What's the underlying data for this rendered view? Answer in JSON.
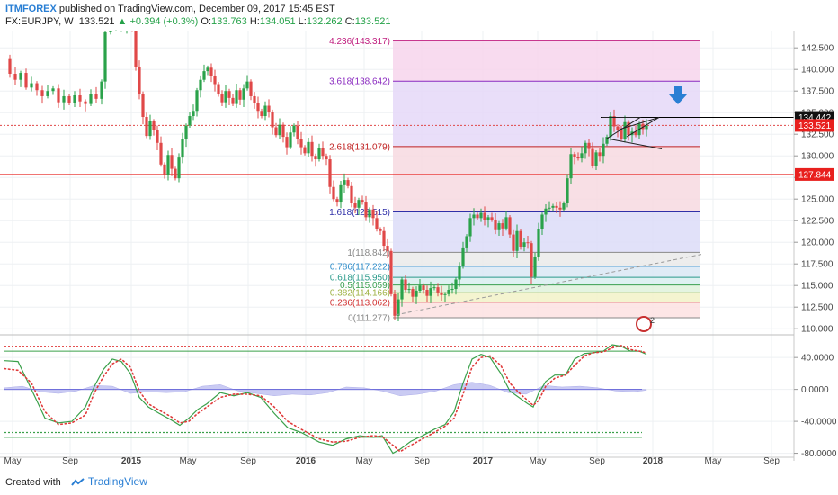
{
  "header": {
    "brand": "ITMFOREX",
    "published": " published on TradingView.com, December 09, 2017 15:45 EST",
    "symbol": "FX:EURJPY, W",
    "last": "133.521",
    "change": "▲ +0.394 (+0.3%)",
    "o_label": "O:",
    "o_value": "133.763",
    "h_label": "H:",
    "h_value": "134.051",
    "l_label": "L:",
    "l_value": "132.262",
    "c_label": "C:",
    "c_value": "133.521"
  },
  "footer": {
    "created_with": "Created with",
    "brand": "TradingView"
  },
  "colors": {
    "bull": "#2aa24a",
    "bear": "#e04848",
    "resistance": "#e8201e",
    "arrow": "#2a7fd4",
    "osc_main": "#3aa04a",
    "osc_signal": "#e03a3a",
    "osc_fill": "#b5b6ee"
  },
  "chart_data": {
    "type": "candlestick",
    "symbol": "FX:EURJPY",
    "timeframe": "W",
    "ylim": [
      109.5,
      144.5
    ],
    "y_ticks": [
      110.0,
      112.5,
      115.0,
      117.5,
      120.0,
      122.5,
      125.0,
      127.5,
      130.0,
      132.5,
      135.0,
      137.5,
      140.0,
      142.5
    ],
    "x_ticks": [
      "May",
      "Sep",
      "2015",
      "May",
      "Sep",
      "2016",
      "May",
      "Sep",
      "2017",
      "May",
      "Sep",
      "2018",
      "May",
      "Sep"
    ],
    "price_labels": [
      {
        "value": 134.442,
        "text": "134.442",
        "style": "black"
      },
      {
        "value": 133.521,
        "text": "133.521",
        "style": "red"
      },
      {
        "value": 127.844,
        "text": "127.844",
        "style": "red"
      }
    ],
    "horizontal_lines": [
      {
        "value": 133.521,
        "style": "dotted",
        "color": "#e04848"
      },
      {
        "value": 127.844,
        "style": "solid",
        "color": "#e8201e"
      },
      {
        "value": 134.442,
        "style": "solid",
        "color": "#000000"
      }
    ],
    "fibonacci": {
      "low": 111.277,
      "high": 118.842,
      "levels": [
        {
          "ratio": "0",
          "value": 111.277,
          "label": "0(111.277)",
          "color": "#888888"
        },
        {
          "ratio": "0.236",
          "value": 113.062,
          "label": "0.236(113.062)",
          "color": "#d03030"
        },
        {
          "ratio": "0.382",
          "value": 114.166,
          "label": "0.382(114.166)",
          "color": "#9cb040"
        },
        {
          "ratio": "0.5",
          "value": 115.059,
          "label": "0.5(115.059)",
          "color": "#3aa050"
        },
        {
          "ratio": "0.618",
          "value": 115.95,
          "label": "0.618(115.950)",
          "color": "#2a9a8a"
        },
        {
          "ratio": "0.786",
          "value": 117.22,
          "label": "0.786(117.222)",
          "color": "#2a8ac8"
        },
        {
          "ratio": "1",
          "value": 118.842,
          "label": "1(118.842)",
          "color": "#888888"
        },
        {
          "ratio": "1.618",
          "value": 123.515,
          "label": "1.618(123.515)",
          "color": "#3030a8"
        },
        {
          "ratio": "2.618",
          "value": 131.079,
          "label": "2.618(131.079)",
          "color": "#c02020"
        },
        {
          "ratio": "3.618",
          "value": 138.642,
          "label": "3.618(138.642)",
          "color": "#8a2ac0"
        },
        {
          "ratio": "4.236",
          "value": 143.317,
          "label": "4.236(143.317)",
          "color": "#c02080"
        }
      ]
    },
    "price_path": [
      [
        0,
        141.2
      ],
      [
        6,
        139.5
      ],
      [
        12,
        138.8
      ],
      [
        18,
        139.6
      ],
      [
        24,
        137.9
      ],
      [
        30,
        138.4
      ],
      [
        36,
        137.6
      ],
      [
        42,
        136.9
      ],
      [
        48,
        137.5
      ],
      [
        54,
        137.8
      ],
      [
        60,
        136.2
      ],
      [
        66,
        136.9
      ],
      [
        72,
        136.1
      ],
      [
        78,
        137.0
      ],
      [
        84,
        136.3
      ],
      [
        90,
        136.0
      ],
      [
        96,
        137.2
      ],
      [
        102,
        136.6
      ],
      [
        108,
        138.6
      ],
      [
        112,
        144.3
      ],
      [
        118,
        145.0
      ],
      [
        124,
        145.0
      ],
      [
        130,
        145.0
      ],
      [
        136,
        145.0
      ],
      [
        142,
        144.6
      ],
      [
        146,
        140.3
      ],
      [
        150,
        137.2
      ],
      [
        154,
        134.5
      ],
      [
        158,
        132.3
      ],
      [
        162,
        134.0
      ],
      [
        166,
        133.0
      ],
      [
        170,
        131.5
      ],
      [
        174,
        129.0
      ],
      [
        178,
        127.8
      ],
      [
        182,
        130.1
      ],
      [
        186,
        128.5
      ],
      [
        190,
        127.4
      ],
      [
        194,
        129.8
      ],
      [
        198,
        131.9
      ],
      [
        202,
        133.5
      ],
      [
        206,
        134.6
      ],
      [
        210,
        135.2
      ],
      [
        214,
        137.6
      ],
      [
        218,
        138.8
      ],
      [
        222,
        139.8
      ],
      [
        226,
        140.2
      ],
      [
        230,
        139.2
      ],
      [
        234,
        138.3
      ],
      [
        238,
        137.1
      ],
      [
        242,
        136.2
      ],
      [
        246,
        137.5
      ],
      [
        250,
        136.7
      ],
      [
        254,
        136.0
      ],
      [
        258,
        137.6
      ],
      [
        262,
        136.5
      ],
      [
        266,
        137.8
      ],
      [
        270,
        138.6
      ],
      [
        274,
        136.9
      ],
      [
        278,
        136.1
      ],
      [
        282,
        135.2
      ],
      [
        286,
        134.6
      ],
      [
        290,
        135.8
      ],
      [
        294,
        135.1
      ],
      [
        298,
        133.3
      ],
      [
        302,
        132.4
      ],
      [
        306,
        133.6
      ],
      [
        310,
        132.2
      ],
      [
        314,
        131.0
      ],
      [
        318,
        132.7
      ],
      [
        322,
        133.5
      ],
      [
        326,
        132.0
      ],
      [
        330,
        131.0
      ],
      [
        334,
        130.3
      ],
      [
        338,
        131.6
      ],
      [
        342,
        130.0
      ],
      [
        346,
        129.6
      ],
      [
        350,
        130.9
      ],
      [
        354,
        130.0
      ],
      [
        358,
        129.6
      ],
      [
        362,
        126.4
      ],
      [
        366,
        125.0
      ],
      [
        370,
        124.6
      ],
      [
        374,
        126.6
      ],
      [
        378,
        127.2
      ],
      [
        382,
        126.5
      ],
      [
        386,
        124.5
      ],
      [
        390,
        124.0
      ],
      [
        394,
        124.9
      ],
      [
        398,
        124.6
      ],
      [
        402,
        122.9
      ],
      [
        406,
        123.8
      ],
      [
        410,
        122.8
      ],
      [
        414,
        121.5
      ],
      [
        418,
        121.3
      ],
      [
        422,
        119.6
      ],
      [
        426,
        119.0
      ],
      [
        430,
        114.0
      ],
      [
        434,
        111.5
      ],
      [
        438,
        113.4
      ],
      [
        442,
        115.7
      ],
      [
        446,
        114.5
      ],
      [
        450,
        114.6
      ],
      [
        454,
        113.7
      ],
      [
        458,
        114.4
      ],
      [
        462,
        115.0
      ],
      [
        466,
        114.5
      ],
      [
        470,
        113.8
      ],
      [
        474,
        114.7
      ],
      [
        478,
        114.8
      ],
      [
        482,
        114.2
      ],
      [
        486,
        113.9
      ],
      [
        490,
        114.0
      ],
      [
        494,
        114.5
      ],
      [
        498,
        114.6
      ],
      [
        502,
        115.7
      ],
      [
        506,
        117.2
      ],
      [
        510,
        119.3
      ],
      [
        514,
        120.7
      ],
      [
        518,
        122.8
      ],
      [
        522,
        123.2
      ],
      [
        526,
        122.8
      ],
      [
        530,
        123.4
      ],
      [
        534,
        122.6
      ],
      [
        538,
        122.9
      ],
      [
        542,
        122.6
      ],
      [
        546,
        121.4
      ],
      [
        550,
        122.2
      ],
      [
        554,
        121.6
      ],
      [
        558,
        122.9
      ],
      [
        562,
        120.9
      ],
      [
        566,
        119.0
      ],
      [
        570,
        121.3
      ],
      [
        574,
        119.4
      ],
      [
        578,
        120.0
      ],
      [
        582,
        119.9
      ],
      [
        586,
        116.0
      ],
      [
        590,
        118.3
      ],
      [
        594,
        121.5
      ],
      [
        598,
        123.2
      ],
      [
        602,
        123.9
      ],
      [
        606,
        124.0
      ],
      [
        610,
        124.2
      ],
      [
        614,
        124.0
      ],
      [
        618,
        123.8
      ],
      [
        622,
        124.5
      ],
      [
        626,
        127.4
      ],
      [
        630,
        130.2
      ],
      [
        634,
        129.9
      ],
      [
        638,
        129.7
      ],
      [
        642,
        130.3
      ],
      [
        646,
        131.5
      ],
      [
        650,
        130.8
      ],
      [
        654,
        128.8
      ],
      [
        658,
        130.4
      ],
      [
        662,
        130.0
      ],
      [
        666,
        131.4
      ],
      [
        670,
        132.2
      ],
      [
        674,
        134.6
      ],
      [
        678,
        133.4
      ],
      [
        682,
        133.0
      ],
      [
        686,
        132.0
      ],
      [
        690,
        133.9
      ],
      [
        694,
        132.4
      ],
      [
        698,
        132.8
      ],
      [
        702,
        132.4
      ],
      [
        706,
        133.7
      ],
      [
        710,
        133.1
      ],
      [
        714,
        133.5
      ]
    ],
    "oscillator": {
      "ylim": [
        -85,
        65
      ],
      "y_ticks": [
        40.0,
        0.0,
        -40.0,
        -80.0
      ],
      "overbought": 54,
      "oversold": -54,
      "main": [
        [
          0,
          36
        ],
        [
          15,
          35
        ],
        [
          30,
          0
        ],
        [
          45,
          -36
        ],
        [
          60,
          -42
        ],
        [
          75,
          -40
        ],
        [
          90,
          -22
        ],
        [
          100,
          4
        ],
        [
          110,
          25
        ],
        [
          120,
          38
        ],
        [
          130,
          35
        ],
        [
          140,
          20
        ],
        [
          150,
          -10
        ],
        [
          160,
          -22
        ],
        [
          172,
          -30
        ],
        [
          185,
          -38
        ],
        [
          195,
          -45
        ],
        [
          205,
          -36
        ],
        [
          215,
          -25
        ],
        [
          225,
          -18
        ],
        [
          240,
          -4
        ],
        [
          255,
          -8
        ],
        [
          270,
          -4
        ],
        [
          285,
          -10
        ],
        [
          300,
          -30
        ],
        [
          315,
          -48
        ],
        [
          330,
          -54
        ],
        [
          350,
          -66
        ],
        [
          365,
          -70
        ],
        [
          380,
          -62
        ],
        [
          395,
          -58
        ],
        [
          410,
          -60
        ],
        [
          420,
          -58
        ],
        [
          432,
          -80
        ],
        [
          440,
          -75
        ],
        [
          452,
          -65
        ],
        [
          465,
          -58
        ],
        [
          478,
          -50
        ],
        [
          490,
          -44
        ],
        [
          500,
          -28
        ],
        [
          510,
          8
        ],
        [
          520,
          38
        ],
        [
          530,
          44
        ],
        [
          540,
          40
        ],
        [
          552,
          20
        ],
        [
          562,
          -2
        ],
        [
          572,
          -10
        ],
        [
          582,
          -18
        ],
        [
          588,
          -22
        ],
        [
          594,
          -5
        ],
        [
          602,
          10
        ],
        [
          612,
          18
        ],
        [
          624,
          18
        ],
        [
          634,
          38
        ],
        [
          645,
          45
        ],
        [
          655,
          46
        ],
        [
          666,
          48
        ],
        [
          676,
          56
        ],
        [
          686,
          54
        ],
        [
          696,
          48
        ],
        [
          706,
          48
        ],
        [
          714,
          44
        ]
      ],
      "signal": [
        [
          0,
          26
        ],
        [
          15,
          24
        ],
        [
          30,
          8
        ],
        [
          45,
          -28
        ],
        [
          60,
          -44
        ],
        [
          75,
          -42
        ],
        [
          90,
          -32
        ],
        [
          100,
          -4
        ],
        [
          110,
          16
        ],
        [
          120,
          32
        ],
        [
          130,
          38
        ],
        [
          140,
          28
        ],
        [
          150,
          -2
        ],
        [
          160,
          -18
        ],
        [
          172,
          -26
        ],
        [
          185,
          -34
        ],
        [
          195,
          -42
        ],
        [
          205,
          -40
        ],
        [
          215,
          -30
        ],
        [
          225,
          -22
        ],
        [
          240,
          -10
        ],
        [
          255,
          -6
        ],
        [
          270,
          -6
        ],
        [
          285,
          -8
        ],
        [
          300,
          -22
        ],
        [
          315,
          -40
        ],
        [
          330,
          -50
        ],
        [
          350,
          -62
        ],
        [
          365,
          -66
        ],
        [
          380,
          -65
        ],
        [
          395,
          -60
        ],
        [
          410,
          -58
        ],
        [
          420,
          -59
        ],
        [
          432,
          -70
        ],
        [
          440,
          -78
        ],
        [
          452,
          -70
        ],
        [
          465,
          -62
        ],
        [
          478,
          -54
        ],
        [
          490,
          -46
        ],
        [
          500,
          -36
        ],
        [
          510,
          -6
        ],
        [
          520,
          28
        ],
        [
          530,
          40
        ],
        [
          540,
          42
        ],
        [
          552,
          30
        ],
        [
          562,
          8
        ],
        [
          572,
          -4
        ],
        [
          582,
          -14
        ],
        [
          588,
          -20
        ],
        [
          594,
          -14
        ],
        [
          602,
          4
        ],
        [
          612,
          14
        ],
        [
          624,
          18
        ],
        [
          634,
          30
        ],
        [
          645,
          42
        ],
        [
          655,
          46
        ],
        [
          666,
          47
        ],
        [
          676,
          52
        ],
        [
          686,
          55
        ],
        [
          696,
          50
        ],
        [
          706,
          48
        ],
        [
          714,
          46
        ]
      ],
      "hist": [
        [
          0,
          2
        ],
        [
          20,
          4
        ],
        [
          40,
          -3
        ],
        [
          60,
          -5
        ],
        [
          80,
          -2
        ],
        [
          100,
          5
        ],
        [
          120,
          4
        ],
        [
          140,
          -5
        ],
        [
          160,
          -3
        ],
        [
          180,
          -4
        ],
        [
          200,
          -3
        ],
        [
          220,
          4
        ],
        [
          240,
          6
        ],
        [
          260,
          -2
        ],
        [
          280,
          -5
        ],
        [
          300,
          -8
        ],
        [
          320,
          -6
        ],
        [
          340,
          -7
        ],
        [
          360,
          -4
        ],
        [
          380,
          3
        ],
        [
          400,
          2
        ],
        [
          420,
          -2
        ],
        [
          440,
          -8
        ],
        [
          460,
          -6
        ],
        [
          480,
          -2
        ],
        [
          500,
          6
        ],
        [
          520,
          9
        ],
        [
          540,
          5
        ],
        [
          560,
          -4
        ],
        [
          580,
          -6
        ],
        [
          600,
          5
        ],
        [
          620,
          3
        ],
        [
          640,
          4
        ],
        [
          660,
          2
        ],
        [
          680,
          -2
        ],
        [
          700,
          -3
        ],
        [
          714,
          -1
        ]
      ]
    },
    "annotations": [
      {
        "type": "arrow-down",
        "color": "#2a7fd4"
      },
      {
        "type": "ascending-wedge",
        "color": "#000000"
      },
      {
        "type": "trendline",
        "style": "dashed",
        "color": "#999999"
      },
      {
        "type": "badge",
        "text": "2"
      }
    ]
  }
}
